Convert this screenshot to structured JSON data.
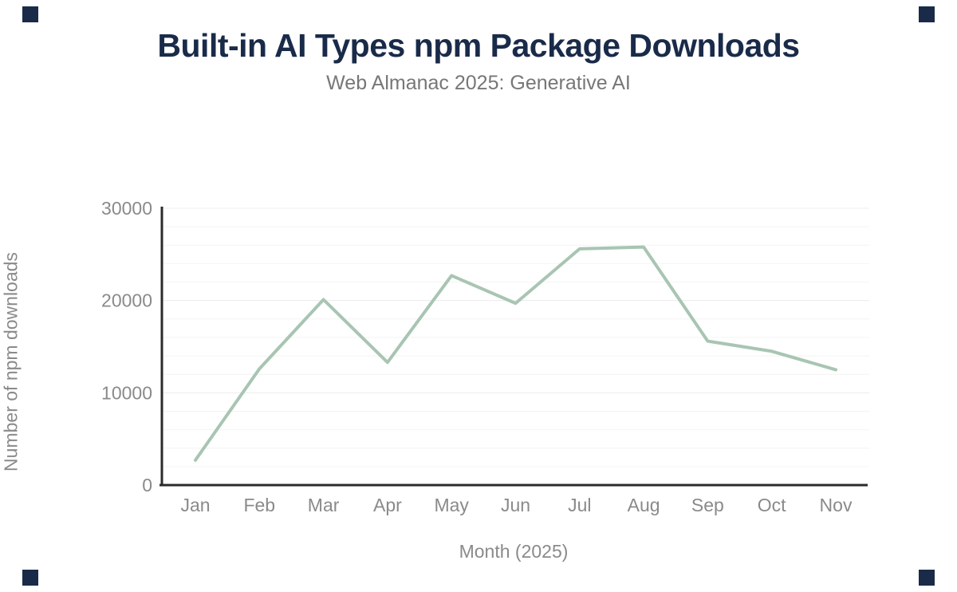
{
  "figure": {
    "background_color": "#ffffff",
    "accent_navy": "#1a2b49",
    "corner_marks": "four small navy squares, one in each corner"
  },
  "chart_data": {
    "type": "line",
    "title": "Built-in AI Types npm Package Downloads",
    "subtitle": "Web Almanac 2025: Generative AI",
    "xlabel": "Month (2025)",
    "ylabel": "Number of npm downloads",
    "categories": [
      "Jan",
      "Feb",
      "Mar",
      "Apr",
      "May",
      "Jun",
      "Jul",
      "Aug",
      "Sep",
      "Oct",
      "Nov"
    ],
    "series": [
      {
        "name": "npm downloads",
        "values": [
          2700,
          12600,
          20100,
          13300,
          22700,
          19700,
          25600,
          25800,
          15600,
          14500,
          12500
        ]
      }
    ],
    "ylim": [
      0,
      30000
    ],
    "yticks": [
      0,
      10000,
      20000,
      30000
    ],
    "ytick_labels": [
      "0",
      "10000",
      "20000",
      "30000"
    ],
    "minor_grid_step": 2000,
    "grid": true,
    "legend_position": "none",
    "line_color": "#a8c5b3",
    "major_grid_color": "#ececec",
    "minor_grid_color": "#f4f4f4",
    "axis_line_color": "#2b2b2b",
    "axis_text_color": "#8a8a8a"
  }
}
